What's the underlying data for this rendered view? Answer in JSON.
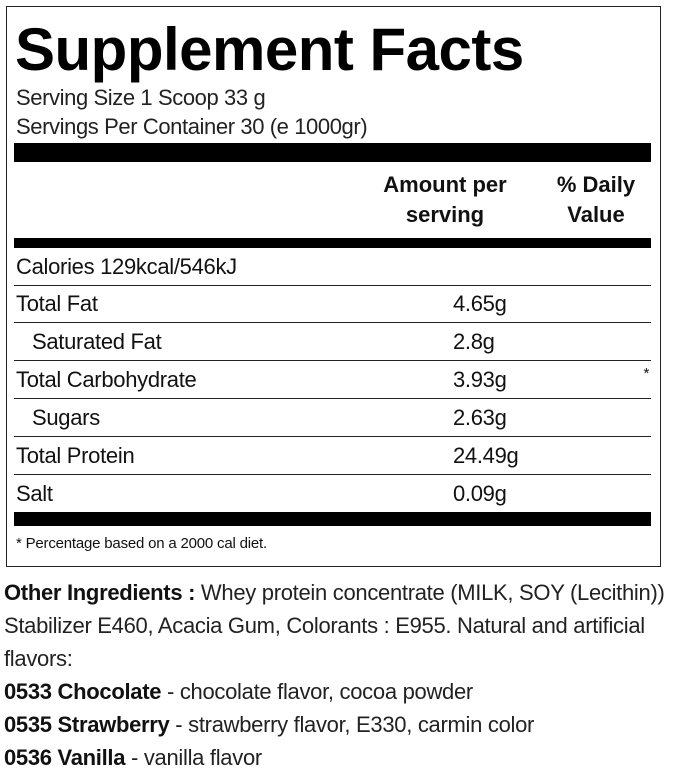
{
  "title": "Supplement Facts",
  "serving_size": "Serving Size 1 Scoop 33 g",
  "servings_per_container": "Servings Per Container 30 (e 1000gr)",
  "columns": {
    "amount": [
      "Amount per",
      "serving"
    ],
    "daily_value": [
      "% Daily",
      "Value"
    ]
  },
  "calories": "Calories 129kcal/546kJ",
  "rows": [
    {
      "label": "Total Fat",
      "amount": "4.65g",
      "dv": ""
    },
    {
      "label": "Saturated Fat",
      "amount": "2.8g",
      "dv": ""
    },
    {
      "label": "Total Carbohydrate",
      "amount": "3.93g",
      "dv": "*"
    },
    {
      "label": "Sugars",
      "amount": "2.63g",
      "dv": ""
    },
    {
      "label": "Total Protein",
      "amount": "24.49g",
      "dv": ""
    },
    {
      "label": "Salt",
      "amount": "0.09g",
      "dv": ""
    }
  ],
  "footnote": "* Percentage based on a 2000 cal diet.",
  "ingredients": {
    "label": "Other Ingredients :",
    "text": " Whey protein concentrate (MILK, SOY (Lecithin)) Stabilizer E460, Acacia Gum, Colorants : E955. Natural and artificial flavors:",
    "flavors": [
      {
        "code": "0533 Chocolate",
        "desc": " - chocolate flavor, cocoa powder"
      },
      {
        "code": "0535 Strawberry",
        "desc": " - strawberry flavor, E330, carmin color"
      },
      {
        "code": "0536 Vanilla",
        "desc": " - vanilla flavor"
      }
    ]
  }
}
